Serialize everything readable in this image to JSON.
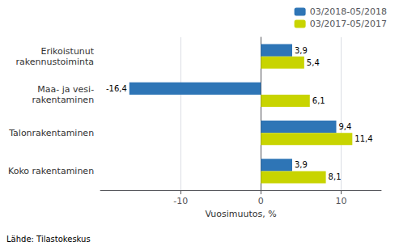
{
  "chart_data": {
    "type": "bar",
    "orientation": "horizontal",
    "categories": [
      "Erikoistunut\nrakennustoiminta",
      "Maa- ja vesi-\nrakentaminen",
      "Talonrakentaminen",
      "Koko rakentaminen"
    ],
    "series": [
      {
        "name": "03/2018-05/2018",
        "color": "#2E75B6",
        "values": [
          3.9,
          -16.4,
          9.4,
          3.9
        ],
        "value_labels": [
          "3,9",
          "-16,4",
          "9,4",
          "3,9"
        ]
      },
      {
        "name": "03/2017-05/2017",
        "color": "#C8D400",
        "values": [
          5.4,
          6.1,
          11.4,
          8.1
        ],
        "value_labels": [
          "5,4",
          "6,1",
          "11,4",
          "8,1"
        ]
      }
    ],
    "xlabel": "Vuosimuutos, %",
    "xlim": [
      -20,
      15
    ],
    "xticks": [
      -10,
      0,
      10
    ],
    "grid": true,
    "legend": "upper right",
    "data_labels": true,
    "annotations": [
      "Lähde: Tilastokeskus"
    ]
  }
}
